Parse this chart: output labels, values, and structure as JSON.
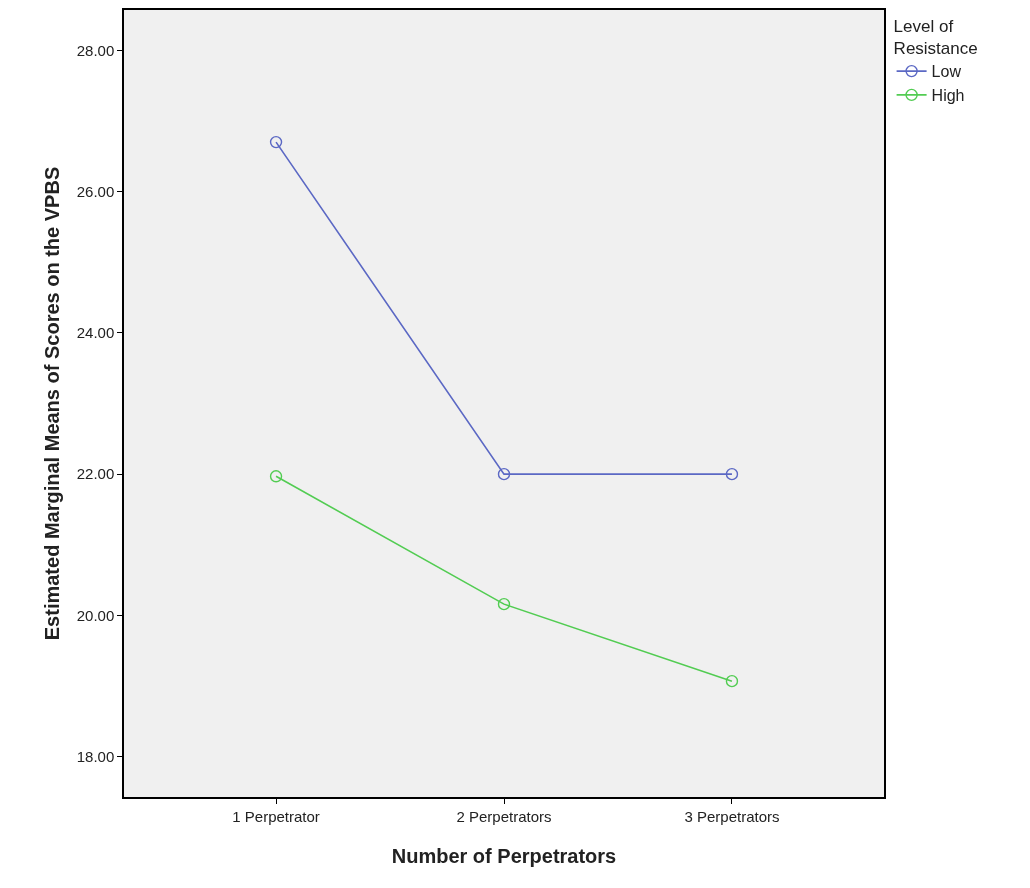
{
  "chart_data": {
    "type": "line",
    "xlabel": "Number of Perpetrators",
    "ylabel": "Estimated Marginal Means of Scores on the VPBS",
    "legend_title": "Level of\nResistance",
    "categories": [
      "1 Perpetrator",
      "2 Perpetrators",
      "3 Perpetrators"
    ],
    "series": [
      {
        "name": "Low",
        "color": "#5b68c4",
        "values": [
          26.7,
          22.0,
          22.0
        ]
      },
      {
        "name": "High",
        "color": "#52cc52",
        "values": [
          21.97,
          20.16,
          19.07
        ]
      }
    ],
    "ylim": [
      17.43,
      28.57
    ],
    "yticks": [
      {
        "value": 18,
        "label": "18.00"
      },
      {
        "value": 20,
        "label": "20.00"
      },
      {
        "value": 22,
        "label": "22.00"
      },
      {
        "value": 24,
        "label": "24.00"
      },
      {
        "value": 26,
        "label": "26.00"
      },
      {
        "value": 28,
        "label": "28.00"
      }
    ],
    "grid": false,
    "legend": "top right",
    "marker": "circle",
    "line_style": "solid"
  }
}
